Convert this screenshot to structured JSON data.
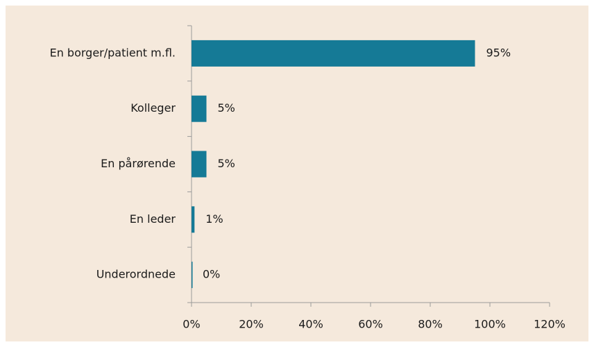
{
  "chart_data": {
    "type": "hbar",
    "categories": [
      "En borger/patient m.fl.",
      "Kolleger",
      "En pårørende",
      "En leder",
      "Underordnede"
    ],
    "values": [
      95,
      5,
      5,
      1,
      0
    ],
    "value_labels": [
      "95%",
      "5%",
      "5%",
      "1%",
      "0%"
    ],
    "color": "#157a96",
    "xlim": [
      0,
      120
    ],
    "xticks": [
      {
        "value": 0,
        "label": "0%"
      },
      {
        "value": 20,
        "label": "20%"
      },
      {
        "value": 40,
        "label": "40%"
      },
      {
        "value": 60,
        "label": "60%"
      },
      {
        "value": 80,
        "label": "80%"
      },
      {
        "value": 100,
        "label": "100%"
      },
      {
        "value": 120,
        "label": "120%"
      }
    ],
    "grid": false
  }
}
